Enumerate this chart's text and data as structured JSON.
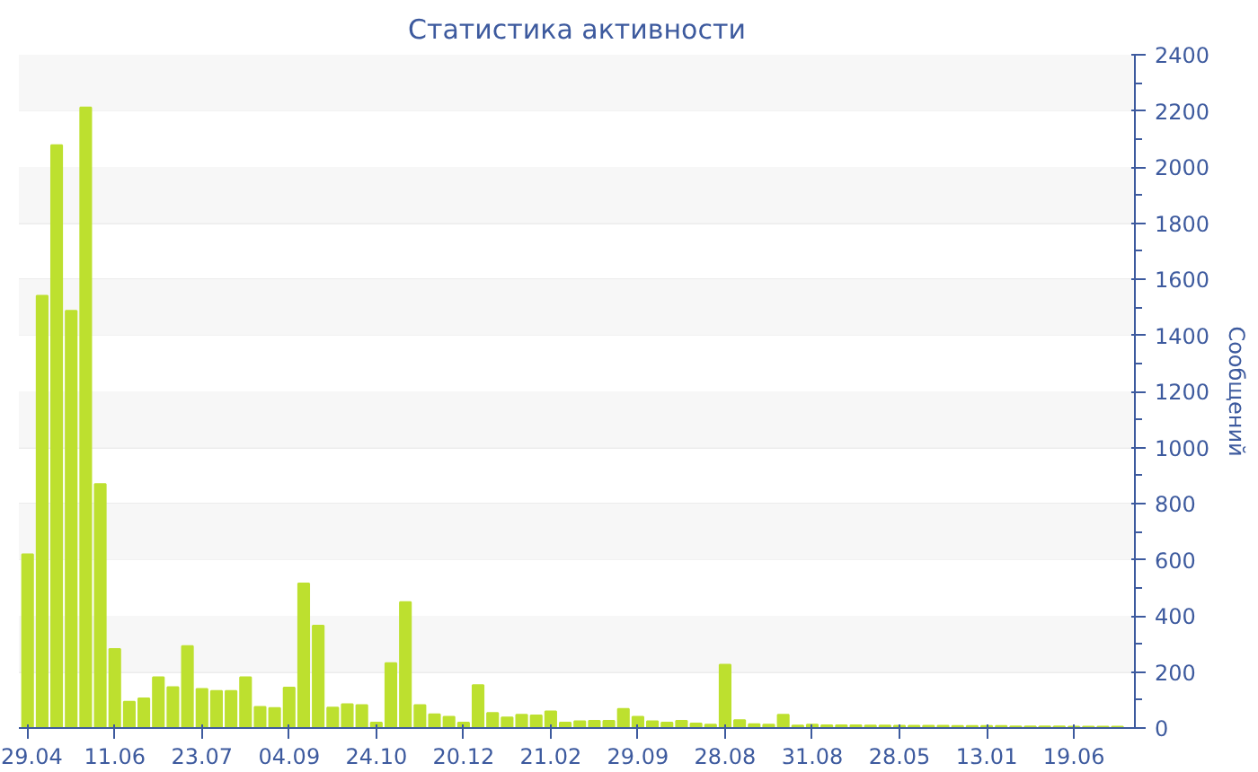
{
  "chart_data": {
    "type": "bar",
    "title": "Статистика активности",
    "ylabel": "Сообщений",
    "categories": [
      "29.04",
      null,
      null,
      null,
      null,
      null,
      "11.06",
      null,
      null,
      null,
      null,
      null,
      "23.07",
      null,
      null,
      null,
      null,
      null,
      "04.09",
      null,
      null,
      null,
      null,
      null,
      "24.10",
      null,
      null,
      null,
      null,
      null,
      "20.12",
      null,
      null,
      null,
      null,
      null,
      "21.02",
      null,
      null,
      null,
      null,
      null,
      "29.09",
      null,
      null,
      null,
      null,
      null,
      "28.08",
      null,
      null,
      null,
      null,
      null,
      "31.08",
      null,
      null,
      null,
      null,
      null,
      "28.05",
      null,
      null,
      null,
      null,
      null,
      "13.01",
      null,
      null,
      null,
      null,
      null,
      "19.06",
      null,
      null,
      null
    ],
    "values": [
      619,
      1541,
      2078,
      1487,
      2212,
      870,
      282,
      94,
      106,
      181,
      146,
      292,
      139,
      132,
      132,
      181,
      75,
      71,
      144,
      515,
      365,
      73,
      85,
      82,
      19,
      231,
      449,
      82,
      49,
      40,
      19,
      153,
      54,
      38,
      47,
      45,
      59,
      19,
      24,
      26,
      26,
      68,
      40,
      24,
      19,
      26,
      16,
      12,
      226,
      28,
      14,
      12,
      47,
      9,
      12,
      10,
      10,
      10,
      9,
      9,
      8,
      8,
      8,
      8,
      7,
      7,
      7,
      7,
      6,
      6,
      6,
      6,
      5,
      5,
      5,
      5
    ],
    "color": "#bde02f",
    "ylim": [
      0,
      2400
    ],
    "yticks": [
      0,
      200,
      400,
      600,
      800,
      1000,
      1200,
      1400,
      1600,
      1800,
      2000,
      2200,
      2400
    ],
    "grid": "y"
  }
}
